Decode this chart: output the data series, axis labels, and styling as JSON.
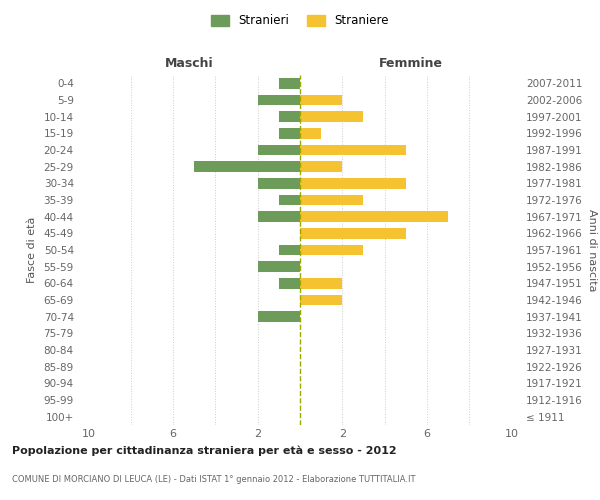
{
  "age_groups": [
    "100+",
    "95-99",
    "90-94",
    "85-89",
    "80-84",
    "75-79",
    "70-74",
    "65-69",
    "60-64",
    "55-59",
    "50-54",
    "45-49",
    "40-44",
    "35-39",
    "30-34",
    "25-29",
    "20-24",
    "15-19",
    "10-14",
    "5-9",
    "0-4"
  ],
  "birth_years": [
    "≤ 1911",
    "1912-1916",
    "1917-1921",
    "1922-1926",
    "1927-1931",
    "1932-1936",
    "1937-1941",
    "1942-1946",
    "1947-1951",
    "1952-1956",
    "1957-1961",
    "1962-1966",
    "1967-1971",
    "1972-1976",
    "1977-1981",
    "1982-1986",
    "1987-1991",
    "1992-1996",
    "1997-2001",
    "2002-2006",
    "2007-2011"
  ],
  "maschi": [
    0,
    0,
    0,
    0,
    0,
    0,
    2,
    0,
    1,
    2,
    1,
    0,
    2,
    1,
    2,
    5,
    2,
    1,
    1,
    2,
    1
  ],
  "femmine": [
    0,
    0,
    0,
    0,
    0,
    0,
    0,
    2,
    2,
    0,
    3,
    5,
    7,
    3,
    5,
    2,
    5,
    1,
    3,
    2,
    0
  ],
  "color_maschi": "#6d9b5a",
  "color_femmine": "#f5c232",
  "color_centerline": "#9aaa00",
  "title1": "Popolazione per cittadinanza straniera per età e sesso - 2012",
  "title2": "COMUNE DI MORCIANO DI LEUCA (LE) - Dati ISTAT 1° gennaio 2012 - Elaborazione TUTTITALIA.IT",
  "xlabel_left": "Maschi",
  "xlabel_right": "Femmine",
  "ylabel": "Fasce di età",
  "ylabel_right": "Anni di nascita",
  "legend_maschi": "Stranieri",
  "legend_femmine": "Straniere",
  "xlim": 10,
  "background_color": "#ffffff",
  "grid_color": "#cccccc"
}
